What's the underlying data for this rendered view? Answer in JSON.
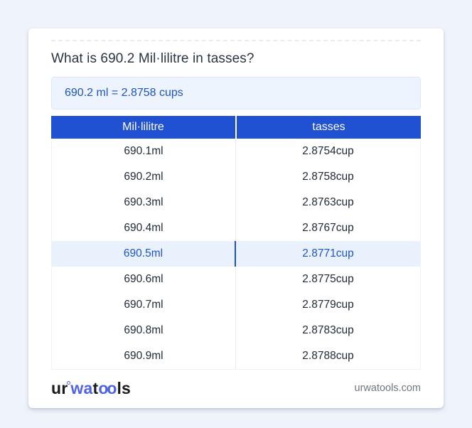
{
  "colors": {
    "page_background": "#eff3fa",
    "header_blue": "#2151d3",
    "result_text_blue": "#1d54c4",
    "result_background": "#edf4fd",
    "highlight_background": "#e9f2fc",
    "highlight_text": "#1d55c9",
    "highlight_divider": "#1d55a8",
    "logo_blue": "#4f63e7",
    "footer_gray": "#6f7680"
  },
  "title": "What is 690.2 Mil·lilitre in tasses?",
  "result": {
    "text": "690.2 ml = 2.8758 cups"
  },
  "table": {
    "columns": [
      "Mil·lilitre",
      "tasses"
    ],
    "rows": [
      {
        "ml": "690.1ml",
        "cup": "2.8754cup",
        "highlighted": false
      },
      {
        "ml": "690.2ml",
        "cup": "2.8758cup",
        "highlighted": false
      },
      {
        "ml": "690.3ml",
        "cup": "2.8763cup",
        "highlighted": false
      },
      {
        "ml": "690.4ml",
        "cup": "2.8767cup",
        "highlighted": false
      },
      {
        "ml": "690.5ml",
        "cup": "2.8771cup",
        "highlighted": true
      },
      {
        "ml": "690.6ml",
        "cup": "2.8775cup",
        "highlighted": false
      },
      {
        "ml": "690.7ml",
        "cup": "2.8779cup",
        "highlighted": false
      },
      {
        "ml": "690.8ml",
        "cup": "2.8783cup",
        "highlighted": false
      },
      {
        "ml": "690.9ml",
        "cup": "2.8788cup",
        "highlighted": false
      }
    ]
  },
  "footer": {
    "logo": {
      "part1": "ur",
      "part2": "wa",
      "part3": "t",
      "part4": "oo",
      "part5": "ls"
    },
    "site": "urwatools.com"
  }
}
